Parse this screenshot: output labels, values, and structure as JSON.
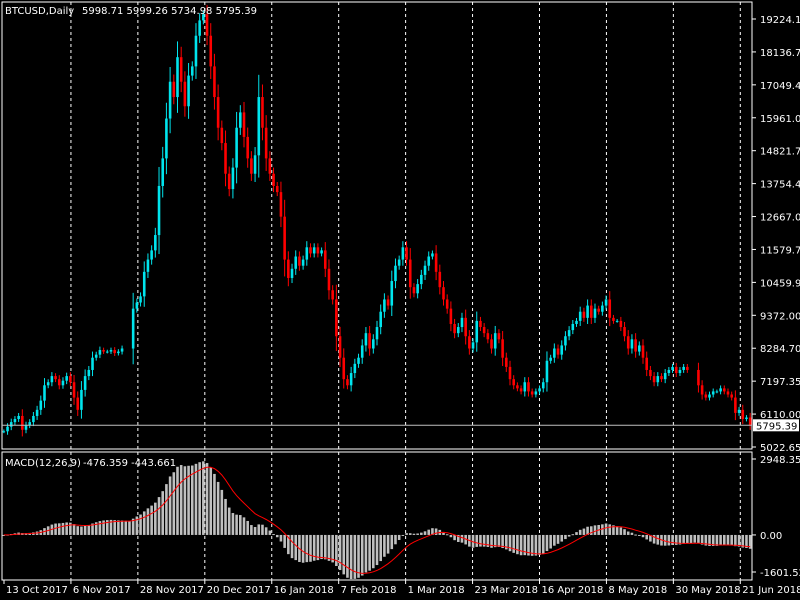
{
  "colors": {
    "background": "#000000",
    "foreground": "#ffffff",
    "bull": "#00e5ee",
    "bear": "#ff0000",
    "grid": "#ffffff",
    "macd_hist": "#c0c0c0",
    "macd_signal": "#ff0000"
  },
  "header": {
    "symbol": "BTCUSD,Daily",
    "ohlc": "5998.71 5999.26 5734.98 5795.39"
  },
  "macd_header": {
    "label": "MACD(12,26,9)",
    "values": "-476.359 -443.661"
  },
  "current_price_label": "5795.39",
  "chart_data": [
    {
      "type": "candlestick",
      "x_axis_type": "date",
      "price_axis": {
        "ylim": [
          5022.65,
          19600.0
        ],
        "ticks": [
          "19224.10",
          "18136.75",
          "17049.40",
          "15961.05",
          "14821.70",
          "13754.40",
          "12667.05",
          "11579.70",
          "10459.95",
          "9372.00",
          "8284.70",
          "7197.35",
          "6110.00",
          "5022.65"
        ]
      },
      "x_ticks": [
        "13 Oct 2017",
        "6 Nov 2017",
        "28 Nov 2017",
        "20 Dec 2017",
        "16 Jan 2018",
        "7 Feb 2018",
        "1 Mar 2018",
        "23 Mar 2018",
        "16 Apr 2018",
        "8 May 2018",
        "30 May 2018",
        "21 Jun 2018"
      ],
      "grid": "vertical-dashed",
      "current_price": 5795.39,
      "close_series": [
        5600,
        5750,
        5900,
        6000,
        6100,
        5650,
        5800,
        5900,
        6100,
        6300,
        6600,
        7100,
        7200,
        7400,
        7300,
        7100,
        7250,
        7400,
        7200,
        6700,
        6300,
        6950,
        7400,
        7600,
        8000,
        8100,
        8250,
        8200,
        8200,
        8250,
        8150,
        8200,
        8300,
        null,
        null,
        9600,
        9800,
        10000,
        10800,
        11200,
        11500,
        12000,
        13600,
        14500,
        15800,
        17000,
        16500,
        17800,
        17000,
        16200,
        17200,
        17500,
        18500,
        19000,
        19200,
        18500,
        17500,
        16500,
        15500,
        15000,
        14000,
        13500,
        14200,
        15500,
        16000,
        15200,
        14500,
        14000,
        14600,
        16500,
        15500,
        14500,
        14000,
        13600,
        13400,
        12600,
        11200,
        10600,
        10900,
        11300,
        11000,
        11200,
        11600,
        11400,
        11600,
        11400,
        11500,
        10900,
        10200,
        9900,
        8700,
        8000,
        7300,
        7100,
        7500,
        7800,
        8000,
        8400,
        8800,
        8300,
        8600,
        9000,
        9500,
        9900,
        9700,
        10500,
        11000,
        11200,
        11600,
        11200,
        10300,
        10100,
        10400,
        10700,
        11000,
        11300,
        11400,
        10800,
        10300,
        9900,
        9600,
        9100,
        8800,
        9000,
        9300,
        8700,
        8300,
        8500,
        9200,
        9000,
        8800,
        8600,
        8300,
        8800,
        8600,
        8000,
        7700,
        7300,
        7100,
        7000,
        6900,
        7200,
        6900,
        6800,
        6900,
        7000,
        7200,
        7900,
        8000,
        8300,
        8100,
        8400,
        8700,
        8900,
        9100,
        9200,
        9500,
        9300,
        9700,
        9300,
        9600,
        9500,
        9700,
        9900,
        9300,
        9200,
        9200,
        9000,
        8700,
        8300,
        8600,
        8200,
        8400,
        8000,
        7600,
        7400,
        7200,
        7400,
        7300,
        7500,
        7600,
        7700,
        7500,
        7600,
        7700,
        7600,
        null,
        null,
        7100,
        6800,
        6700,
        6800,
        6900,
        6900,
        7000,
        6900,
        6800,
        6700,
        6200,
        6300,
        6000,
        6050,
        5795.39
      ]
    },
    {
      "type": "bar",
      "name": "MACD(12,26,9)",
      "ylim": [
        -1601.526,
        2948.354
      ],
      "ticks": [
        "2948.354",
        "0.00",
        "-1601.526"
      ],
      "last_macd": -476.359,
      "last_signal": -443.661
    }
  ]
}
